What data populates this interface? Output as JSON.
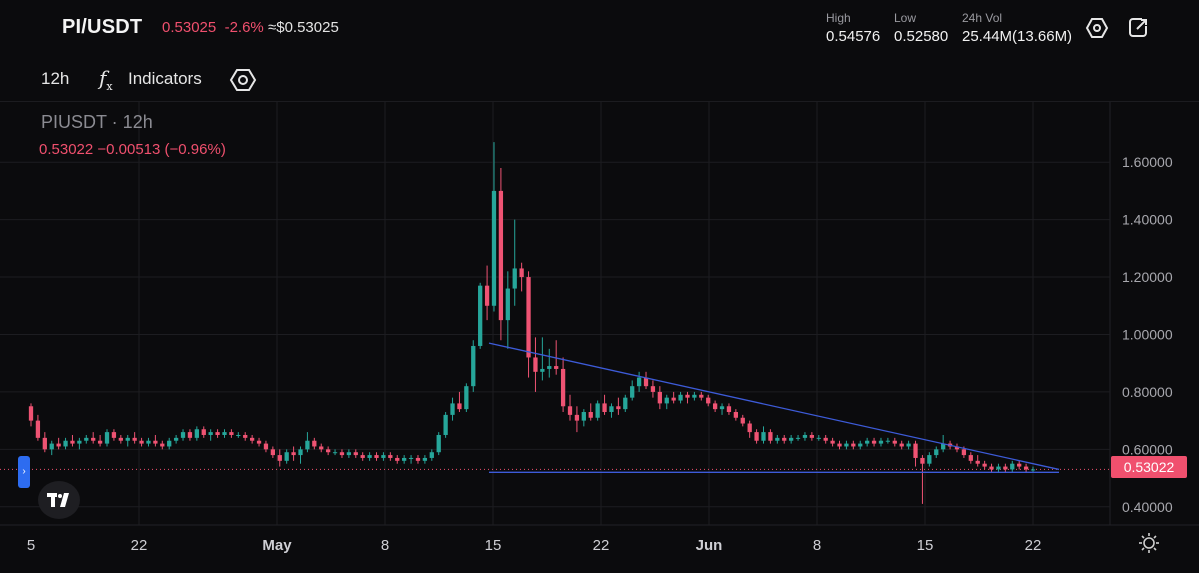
{
  "header": {
    "pair": "PI/USDT",
    "price": "0.53025",
    "change": "-2.6%",
    "price_usd": "≈$0.53025",
    "stats": [
      {
        "label": "High",
        "value": "0.54576"
      },
      {
        "label": "Low",
        "value": "0.52580"
      },
      {
        "label": "24h Vol",
        "value": "25.44M(13.66M)"
      }
    ],
    "icons": [
      "settings-hex-icon",
      "fullscreen-icon"
    ]
  },
  "toolbar": {
    "timeframe": "12h",
    "fx_symbol": "f",
    "fx_sub": "x",
    "indicators_label": "Indicators",
    "icons": [
      "chart-settings-hex-icon"
    ]
  },
  "legend": {
    "symbol": "PIUSDT · 12h",
    "ohlc": "0.53022  −0.00513 (−0.96%)"
  },
  "price_tag": "0.53022",
  "colors": {
    "up": "#26a69a",
    "down": "#ef5373",
    "trend": "#3d5bd8",
    "price_line": "#f0506e"
  },
  "chart_data": {
    "type": "candlestick",
    "ylim": [
      0.34,
      1.74
    ],
    "y_ticks": [
      "1.60000",
      "1.40000",
      "1.20000",
      "1.00000",
      "0.80000",
      "0.60000",
      "0.40000"
    ],
    "x_ticks": [
      "5",
      "22",
      "May",
      "8",
      "15",
      "22",
      "Jun",
      "8",
      "15",
      "22"
    ],
    "last_price": 0.53022,
    "candles": [
      [
        0.75,
        0.76,
        0.68,
        0.7
      ],
      [
        0.7,
        0.72,
        0.63,
        0.64
      ],
      [
        0.64,
        0.66,
        0.59,
        0.6
      ],
      [
        0.6,
        0.63,
        0.58,
        0.62
      ],
      [
        0.62,
        0.64,
        0.6,
        0.61
      ],
      [
        0.61,
        0.64,
        0.6,
        0.63
      ],
      [
        0.63,
        0.65,
        0.61,
        0.62
      ],
      [
        0.62,
        0.64,
        0.6,
        0.63
      ],
      [
        0.63,
        0.65,
        0.62,
        0.64
      ],
      [
        0.64,
        0.66,
        0.62,
        0.63
      ],
      [
        0.63,
        0.65,
        0.61,
        0.62
      ],
      [
        0.62,
        0.67,
        0.61,
        0.66
      ],
      [
        0.66,
        0.67,
        0.63,
        0.64
      ],
      [
        0.64,
        0.65,
        0.62,
        0.63
      ],
      [
        0.63,
        0.65,
        0.61,
        0.64
      ],
      [
        0.64,
        0.66,
        0.62,
        0.63
      ],
      [
        0.63,
        0.64,
        0.61,
        0.62
      ],
      [
        0.62,
        0.64,
        0.61,
        0.63
      ],
      [
        0.63,
        0.65,
        0.61,
        0.62
      ],
      [
        0.62,
        0.63,
        0.6,
        0.61
      ],
      [
        0.61,
        0.64,
        0.6,
        0.63
      ],
      [
        0.63,
        0.65,
        0.62,
        0.64
      ],
      [
        0.64,
        0.67,
        0.63,
        0.66
      ],
      [
        0.66,
        0.67,
        0.63,
        0.64
      ],
      [
        0.64,
        0.68,
        0.63,
        0.67
      ],
      [
        0.67,
        0.68,
        0.64,
        0.65
      ],
      [
        0.65,
        0.67,
        0.63,
        0.66
      ],
      [
        0.66,
        0.67,
        0.64,
        0.65
      ],
      [
        0.65,
        0.67,
        0.64,
        0.66
      ],
      [
        0.66,
        0.67,
        0.64,
        0.65
      ],
      [
        0.65,
        0.66,
        0.64,
        0.65
      ],
      [
        0.65,
        0.66,
        0.63,
        0.64
      ],
      [
        0.64,
        0.65,
        0.62,
        0.63
      ],
      [
        0.63,
        0.64,
        0.61,
        0.62
      ],
      [
        0.62,
        0.63,
        0.59,
        0.6
      ],
      [
        0.6,
        0.61,
        0.57,
        0.58
      ],
      [
        0.58,
        0.6,
        0.54,
        0.56
      ],
      [
        0.56,
        0.6,
        0.55,
        0.59
      ],
      [
        0.59,
        0.61,
        0.56,
        0.58
      ],
      [
        0.58,
        0.61,
        0.55,
        0.6
      ],
      [
        0.6,
        0.66,
        0.59,
        0.63
      ],
      [
        0.63,
        0.64,
        0.6,
        0.61
      ],
      [
        0.61,
        0.62,
        0.59,
        0.6
      ],
      [
        0.6,
        0.61,
        0.58,
        0.59
      ],
      [
        0.59,
        0.6,
        0.58,
        0.59
      ],
      [
        0.59,
        0.6,
        0.57,
        0.58
      ],
      [
        0.58,
        0.6,
        0.57,
        0.59
      ],
      [
        0.59,
        0.6,
        0.57,
        0.58
      ],
      [
        0.58,
        0.59,
        0.56,
        0.57
      ],
      [
        0.57,
        0.59,
        0.56,
        0.58
      ],
      [
        0.58,
        0.59,
        0.56,
        0.57
      ],
      [
        0.57,
        0.59,
        0.56,
        0.58
      ],
      [
        0.58,
        0.59,
        0.56,
        0.57
      ],
      [
        0.57,
        0.58,
        0.55,
        0.56
      ],
      [
        0.56,
        0.58,
        0.55,
        0.57
      ],
      [
        0.57,
        0.58,
        0.55,
        0.57
      ],
      [
        0.57,
        0.58,
        0.55,
        0.56
      ],
      [
        0.56,
        0.58,
        0.55,
        0.57
      ],
      [
        0.57,
        0.6,
        0.56,
        0.59
      ],
      [
        0.59,
        0.66,
        0.58,
        0.65
      ],
      [
        0.65,
        0.73,
        0.64,
        0.72
      ],
      [
        0.72,
        0.78,
        0.7,
        0.76
      ],
      [
        0.76,
        0.8,
        0.73,
        0.74
      ],
      [
        0.74,
        0.83,
        0.73,
        0.82
      ],
      [
        0.82,
        0.98,
        0.8,
        0.96
      ],
      [
        0.96,
        1.18,
        0.95,
        1.17
      ],
      [
        1.17,
        1.24,
        1.05,
        1.1
      ],
      [
        1.1,
        1.67,
        1.08,
        1.5
      ],
      [
        1.5,
        1.58,
        0.98,
        1.05
      ],
      [
        1.05,
        1.22,
        0.95,
        1.16
      ],
      [
        1.16,
        1.4,
        1.1,
        1.23
      ],
      [
        1.23,
        1.25,
        1.15,
        1.2
      ],
      [
        1.2,
        1.22,
        0.85,
        0.92
      ],
      [
        0.92,
        0.99,
        0.8,
        0.87
      ],
      [
        0.87,
        0.99,
        0.84,
        0.88
      ],
      [
        0.88,
        0.95,
        0.85,
        0.89
      ],
      [
        0.89,
        0.98,
        0.86,
        0.88
      ],
      [
        0.88,
        0.92,
        0.73,
        0.75
      ],
      [
        0.75,
        0.79,
        0.7,
        0.72
      ],
      [
        0.72,
        0.75,
        0.66,
        0.7
      ],
      [
        0.7,
        0.74,
        0.68,
        0.73
      ],
      [
        0.73,
        0.76,
        0.7,
        0.71
      ],
      [
        0.71,
        0.77,
        0.7,
        0.76
      ],
      [
        0.76,
        0.79,
        0.72,
        0.73
      ],
      [
        0.73,
        0.76,
        0.71,
        0.75
      ],
      [
        0.75,
        0.78,
        0.72,
        0.74
      ],
      [
        0.74,
        0.79,
        0.73,
        0.78
      ],
      [
        0.78,
        0.84,
        0.77,
        0.82
      ],
      [
        0.82,
        0.87,
        0.8,
        0.85
      ],
      [
        0.85,
        0.87,
        0.81,
        0.82
      ],
      [
        0.82,
        0.84,
        0.78,
        0.8
      ],
      [
        0.8,
        0.82,
        0.74,
        0.76
      ],
      [
        0.76,
        0.79,
        0.74,
        0.78
      ],
      [
        0.78,
        0.8,
        0.76,
        0.77
      ],
      [
        0.77,
        0.8,
        0.76,
        0.79
      ],
      [
        0.79,
        0.8,
        0.76,
        0.78
      ],
      [
        0.78,
        0.8,
        0.77,
        0.79
      ],
      [
        0.79,
        0.8,
        0.77,
        0.78
      ],
      [
        0.78,
        0.79,
        0.75,
        0.76
      ],
      [
        0.76,
        0.77,
        0.73,
        0.74
      ],
      [
        0.74,
        0.76,
        0.72,
        0.75
      ],
      [
        0.75,
        0.76,
        0.72,
        0.73
      ],
      [
        0.73,
        0.74,
        0.7,
        0.71
      ],
      [
        0.71,
        0.72,
        0.68,
        0.69
      ],
      [
        0.69,
        0.7,
        0.64,
        0.66
      ],
      [
        0.66,
        0.67,
        0.62,
        0.63
      ],
      [
        0.63,
        0.68,
        0.62,
        0.66
      ],
      [
        0.66,
        0.67,
        0.62,
        0.63
      ],
      [
        0.63,
        0.65,
        0.62,
        0.64
      ],
      [
        0.64,
        0.65,
        0.62,
        0.63
      ],
      [
        0.63,
        0.65,
        0.62,
        0.64
      ],
      [
        0.64,
        0.65,
        0.63,
        0.64
      ],
      [
        0.64,
        0.66,
        0.63,
        0.65
      ],
      [
        0.65,
        0.66,
        0.63,
        0.64
      ],
      [
        0.64,
        0.65,
        0.63,
        0.64
      ],
      [
        0.64,
        0.65,
        0.62,
        0.63
      ],
      [
        0.63,
        0.64,
        0.61,
        0.62
      ],
      [
        0.62,
        0.63,
        0.6,
        0.61
      ],
      [
        0.61,
        0.63,
        0.6,
        0.62
      ],
      [
        0.62,
        0.63,
        0.6,
        0.61
      ],
      [
        0.61,
        0.63,
        0.6,
        0.62
      ],
      [
        0.62,
        0.64,
        0.61,
        0.63
      ],
      [
        0.63,
        0.64,
        0.61,
        0.62
      ],
      [
        0.62,
        0.64,
        0.61,
        0.63
      ],
      [
        0.63,
        0.64,
        0.62,
        0.63
      ],
      [
        0.63,
        0.64,
        0.61,
        0.62
      ],
      [
        0.62,
        0.63,
        0.6,
        0.61
      ],
      [
        0.61,
        0.63,
        0.6,
        0.62
      ],
      [
        0.62,
        0.63,
        0.54,
        0.57
      ],
      [
        0.57,
        0.58,
        0.41,
        0.55
      ],
      [
        0.55,
        0.59,
        0.54,
        0.58
      ],
      [
        0.58,
        0.61,
        0.57,
        0.6
      ],
      [
        0.6,
        0.65,
        0.59,
        0.62
      ],
      [
        0.62,
        0.63,
        0.6,
        0.61
      ],
      [
        0.61,
        0.62,
        0.59,
        0.6
      ],
      [
        0.6,
        0.61,
        0.57,
        0.58
      ],
      [
        0.58,
        0.59,
        0.55,
        0.56
      ],
      [
        0.56,
        0.58,
        0.54,
        0.55
      ],
      [
        0.55,
        0.56,
        0.53,
        0.54
      ],
      [
        0.54,
        0.55,
        0.52,
        0.53
      ],
      [
        0.53,
        0.55,
        0.52,
        0.54
      ],
      [
        0.54,
        0.55,
        0.52,
        0.53
      ],
      [
        0.53,
        0.56,
        0.52,
        0.55
      ],
      [
        0.55,
        0.56,
        0.53,
        0.54
      ],
      [
        0.54,
        0.55,
        0.52,
        0.53
      ],
      [
        0.53,
        0.54,
        0.52,
        0.53
      ]
    ],
    "trend_lines": [
      {
        "from": [
          76,
          0.97
        ],
        "to": [
          166,
          0.53
        ]
      },
      {
        "from": [
          76,
          0.52
        ],
        "to": [
          166,
          0.52
        ]
      }
    ]
  }
}
